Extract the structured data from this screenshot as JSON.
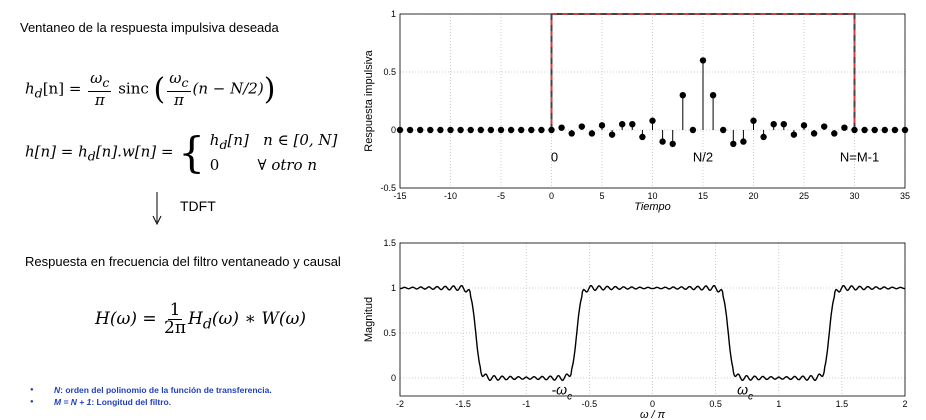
{
  "left_panel": {
    "heading": "Ventaneo de la respuesta impulsiva deseada",
    "eq1": {
      "lhs": "h",
      "lhs_sub": "d",
      "arg": "[n] =",
      "frac_num": "ω",
      "frac_num_sub": "c",
      "frac_den": "π",
      "func": "sinc",
      "paren_frac_num": "ω",
      "paren_frac_num_sub": "c",
      "paren_frac_den": "π",
      "paren_tail": "(n − N/2)"
    },
    "eq2": {
      "lhs": "h[n] = h",
      "lhs_sub": "d",
      "mid": "[n].w[n] =",
      "case1_val": "h",
      "case1_sub": "d",
      "case1_arg": "[n]",
      "case1_cond": "n ∈ [0, N]",
      "case2_val": "0",
      "case2_cond": "∀ otro n"
    },
    "arrow_label": "TDFT",
    "heading2": "Respuesta en frecuencia del filtro ventaneado y causal",
    "eq3": {
      "lhs": "H(ω) =",
      "frac_num": "1",
      "frac_den": "2π",
      "rhs_a": "H",
      "rhs_sub": "d",
      "rhs_b": "(ω) ∗ W(ω)"
    },
    "bullets": [
      {
        "term": "N",
        "text": ": orden del polinomio de la función de transferencia."
      },
      {
        "term": "M = N + 1",
        "text": ": Longitud del filtro."
      }
    ]
  },
  "colors": {
    "stem": "#000000",
    "window": "#d04040",
    "window_dash": "#444444",
    "grid": "#c0c0c0"
  },
  "chart_data": [
    {
      "type": "scatter",
      "subtype": "stem",
      "ylabel": "Respuesta impulsiva",
      "xlabel": "Tiempo",
      "xlim": [
        -15,
        35
      ],
      "ylim": [
        -0.5,
        1
      ],
      "x_ticks": [
        -15,
        -10,
        -5,
        0,
        5,
        10,
        15,
        20,
        25,
        30,
        35
      ],
      "y_ticks": [
        -0.5,
        0,
        0.5,
        1
      ],
      "grid": true,
      "stems": {
        "x": [
          -15,
          -14,
          -13,
          -12,
          -11,
          -10,
          -9,
          -8,
          -7,
          -6,
          -5,
          -4,
          -3,
          -2,
          -1,
          0,
          1,
          2,
          3,
          4,
          5,
          6,
          7,
          8,
          9,
          10,
          11,
          12,
          13,
          14,
          15,
          16,
          17,
          18,
          19,
          20,
          21,
          22,
          23,
          24,
          25,
          26,
          27,
          28,
          29,
          30,
          31,
          32,
          33,
          34,
          35
        ],
        "y": [
          0,
          0,
          0,
          0,
          0,
          0,
          0,
          0,
          0,
          0,
          0,
          0,
          0,
          0,
          0,
          0,
          0.02,
          -0.03,
          0.03,
          -0.03,
          0.04,
          -0.04,
          0.05,
          0.05,
          -0.06,
          0.08,
          -0.1,
          -0.12,
          0.3,
          0,
          0.6,
          0.3,
          0,
          -0.12,
          -0.1,
          0.08,
          -0.06,
          0.05,
          0.05,
          -0.04,
          0.04,
          -0.03,
          0.03,
          -0.03,
          0.02,
          0,
          0,
          0,
          0,
          0,
          0
        ]
      },
      "window": {
        "x": [
          0,
          0,
          30,
          30
        ],
        "y": [
          0,
          1,
          1,
          0
        ]
      },
      "annotations": [
        {
          "text": "0",
          "x": 0.3,
          "y": -0.27
        },
        {
          "text": "N/2",
          "x": 15,
          "y": -0.27
        },
        {
          "text": "N=M-1",
          "x": 30.5,
          "y": -0.27
        }
      ]
    },
    {
      "type": "line",
      "ylabel": "Magnitud",
      "xlabel": "ω / π",
      "xlim": [
        -2,
        2
      ],
      "ylim": [
        -0.2,
        1.5
      ],
      "x_ticks": [
        -2,
        -1.5,
        -1,
        -0.5,
        0,
        0.5,
        1,
        1.5,
        2
      ],
      "y_ticks": [
        0,
        0.5,
        1,
        1.5
      ],
      "grid": true,
      "cutoff": 0.6,
      "annotations": [
        {
          "text": "-ω",
          "sub": "c",
          "x": -0.8,
          "y": -0.05
        },
        {
          "text": "ω",
          "sub": "c",
          "x": 0.67,
          "y": -0.05
        }
      ]
    }
  ]
}
